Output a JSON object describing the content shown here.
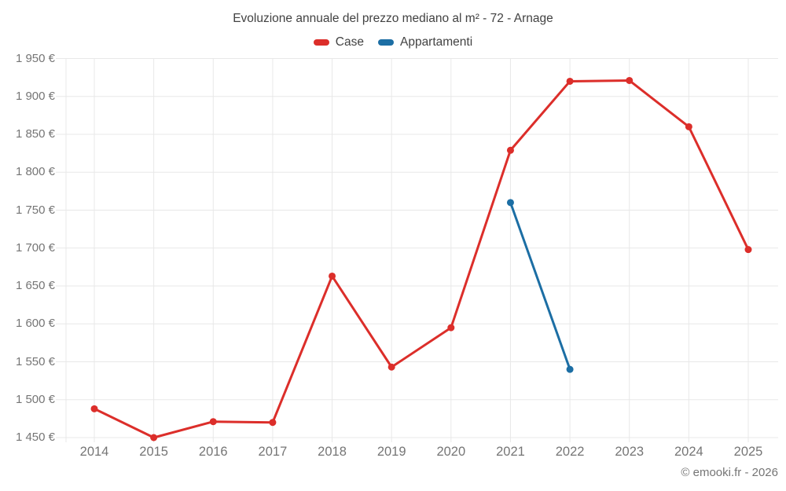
{
  "header": {
    "title": "Evoluzione annuale del prezzo mediano al m² - 72 - Arnage"
  },
  "legend": [
    {
      "label": "Case",
      "color": "#dc2e2a"
    },
    {
      "label": "Appartamenti",
      "color": "#1c6ea4"
    }
  ],
  "footer": {
    "copyright": "© emooki.fr - 2026"
  },
  "colors": {
    "grid": "#e8e8e8",
    "tick_label": "#757575",
    "title_text": "#424242",
    "background": "#ffffff"
  },
  "chart_data": {
    "type": "line",
    "title": "Evoluzione annuale del prezzo mediano al m² - 72 - Arnage",
    "xlabel": "",
    "ylabel": "",
    "currency": "€",
    "grid": true,
    "legend_position": "top",
    "categories": [
      "2014",
      "2015",
      "2016",
      "2017",
      "2018",
      "2019",
      "2020",
      "2021",
      "2022",
      "2023",
      "2024",
      "2025"
    ],
    "series": [
      {
        "name": "Case",
        "color": "#dc2e2a",
        "values": [
          1488,
          1450,
          1471,
          1470,
          1663,
          1543,
          1595,
          1829,
          1920,
          1921,
          1860,
          1698
        ]
      },
      {
        "name": "Appartamenti",
        "color": "#1c6ea4",
        "values": [
          null,
          null,
          null,
          null,
          null,
          null,
          null,
          1760,
          1540,
          null,
          null,
          null
        ]
      }
    ],
    "ylim": [
      1450,
      1950
    ],
    "y_tick_step": 50,
    "y_tick_labels": [
      "1 450 €",
      "1 500 €",
      "1 550 €",
      "1 600 €",
      "1 650 €",
      "1 700 €",
      "1 750 €",
      "1 800 €",
      "1 850 €",
      "1 900 €",
      "1 950 €"
    ]
  }
}
